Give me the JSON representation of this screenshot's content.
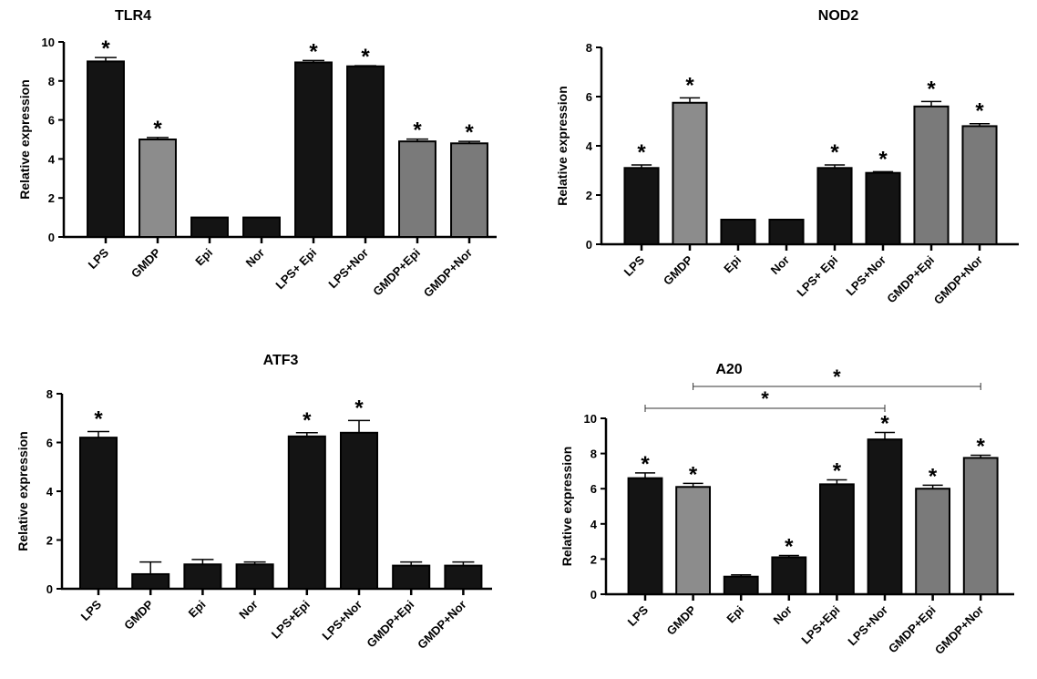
{
  "chart_data": [
    {
      "type": "bar",
      "title": "TLR4",
      "ylabel": "Relative expression",
      "xlabel": "",
      "ylim": [
        0,
        10
      ],
      "yticks": [
        0,
        2,
        4,
        6,
        8,
        10
      ],
      "categories": [
        "LPS",
        "GMDP",
        "Epi",
        "Nor",
        "LPS+ Epi",
        "LPS+Nor",
        "GMDP+Epi",
        "GMDP+Nor"
      ],
      "values": [
        9.0,
        5.0,
        1.0,
        1.0,
        8.95,
        8.75,
        4.9,
        4.8
      ],
      "errors": [
        0.2,
        0.1,
        0,
        0,
        0.1,
        0.03,
        0.12,
        0.1
      ],
      "significant": [
        true,
        true,
        false,
        false,
        true,
        true,
        true,
        true
      ],
      "bar_colors": [
        "#141414",
        "#8c8c8c",
        "#141414",
        "#141414",
        "#141414",
        "#141414",
        "#7a7a7a",
        "#7a7a7a"
      ],
      "significance_marker": "*",
      "brackets": []
    },
    {
      "type": "bar",
      "title": "NOD2",
      "ylabel": "Relative expression",
      "xlabel": "",
      "ylim": [
        0,
        8
      ],
      "yticks": [
        0,
        2,
        4,
        6,
        8
      ],
      "categories": [
        "LPS",
        "GMDP",
        "Epi",
        "Nor",
        "LPS+ Epi",
        "LPS+Nor",
        "GMDP+Epi",
        "GMDP+Nor"
      ],
      "values": [
        3.1,
        5.75,
        1.0,
        1.0,
        3.1,
        2.9,
        5.6,
        4.8
      ],
      "errors": [
        0.12,
        0.2,
        0,
        0,
        0.12,
        0.05,
        0.2,
        0.1
      ],
      "significant": [
        true,
        true,
        false,
        false,
        true,
        true,
        true,
        true
      ],
      "bar_colors": [
        "#141414",
        "#8c8c8c",
        "#141414",
        "#141414",
        "#141414",
        "#141414",
        "#7a7a7a",
        "#7a7a7a"
      ],
      "significance_marker": "*",
      "brackets": []
    },
    {
      "type": "bar",
      "title": "ATF3",
      "ylabel": "Relative expression",
      "xlabel": "",
      "ylim": [
        0,
        8
      ],
      "yticks": [
        0,
        2,
        4,
        6,
        8
      ],
      "categories": [
        "LPS",
        "GMDP",
        "Epi",
        "Nor",
        "LPS+Epi",
        "LPS+Nor",
        "GMDP+Epi",
        "GMDP+Nor"
      ],
      "values": [
        6.2,
        0.6,
        1.0,
        1.0,
        6.25,
        6.4,
        0.95,
        0.95
      ],
      "errors": [
        0.25,
        0.5,
        0.2,
        0.1,
        0.15,
        0.5,
        0.15,
        0.15
      ],
      "significant": [
        true,
        false,
        false,
        false,
        true,
        true,
        false,
        false
      ],
      "bar_colors": [
        "#141414",
        "#141414",
        "#141414",
        "#141414",
        "#141414",
        "#141414",
        "#141414",
        "#141414"
      ],
      "significance_marker": "*",
      "brackets": []
    },
    {
      "type": "bar",
      "title": "A20",
      "ylabel": "Relative expression",
      "xlabel": "",
      "ylim": [
        0,
        10
      ],
      "yticks": [
        0,
        2,
        4,
        6,
        8,
        10
      ],
      "categories": [
        "LPS",
        "GMDP",
        "Epi",
        "Nor",
        "LPS+Epi",
        "LPS+Nor",
        "GMDP+Epi",
        "GMDP+Nor"
      ],
      "values": [
        6.6,
        6.1,
        1.0,
        2.1,
        6.25,
        8.8,
        6.0,
        7.75
      ],
      "errors": [
        0.3,
        0.2,
        0.1,
        0.1,
        0.25,
        0.4,
        0.2,
        0.15
      ],
      "significant": [
        true,
        true,
        false,
        true,
        true,
        true,
        true,
        true
      ],
      "bar_colors": [
        "#141414",
        "#8c8c8c",
        "#141414",
        "#141414",
        "#141414",
        "#141414",
        "#7a7a7a",
        "#7a7a7a"
      ],
      "significance_marker": "*",
      "brackets": [
        {
          "from": "LPS",
          "to": "LPS+Nor",
          "label": "*"
        },
        {
          "from": "GMDP",
          "to": "GMDP+Nor",
          "label": "*"
        }
      ]
    }
  ]
}
